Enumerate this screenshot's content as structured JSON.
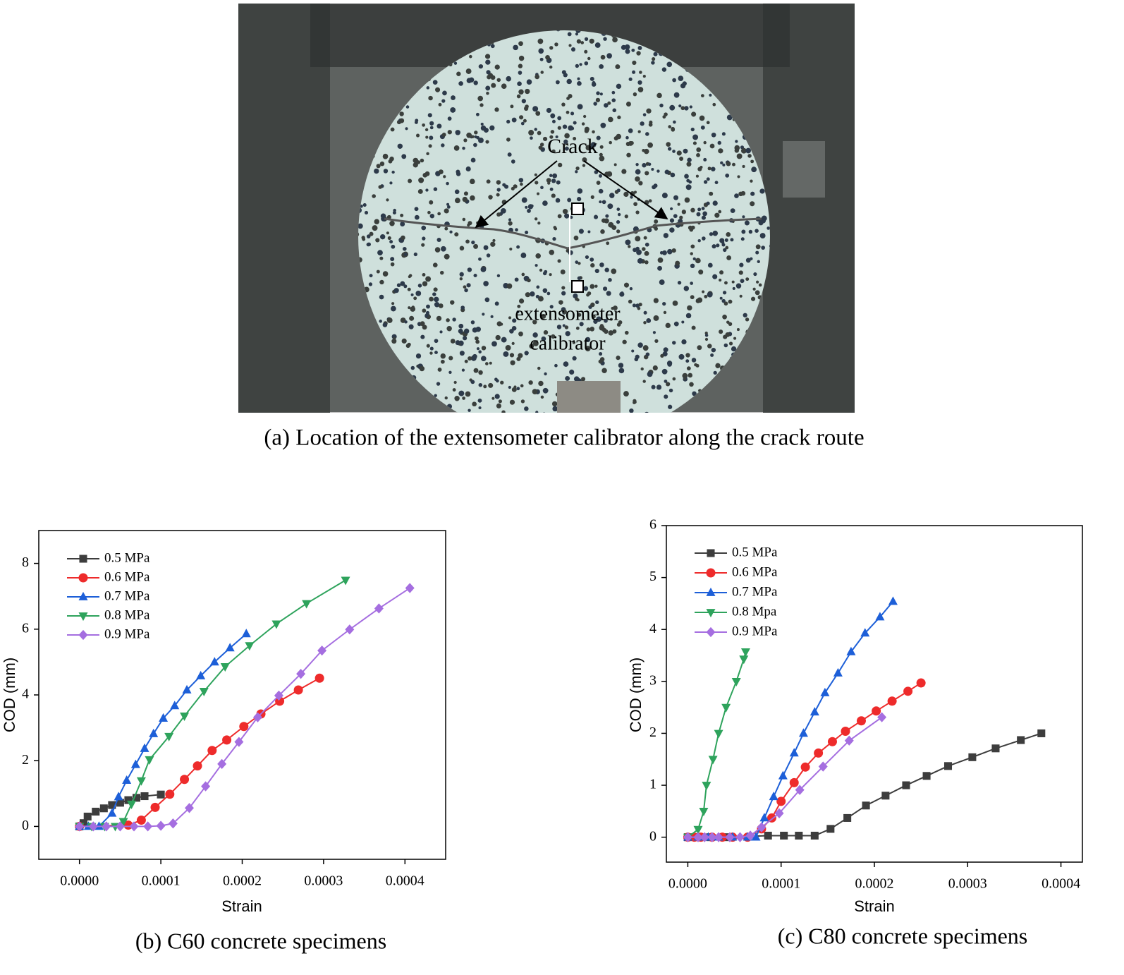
{
  "photo": {
    "crack_label": "Crack",
    "calibrator_label": [
      "extensometer",
      "calibrator"
    ],
    "caption": "(a) Location of the extensometer calibrator along the crack route"
  },
  "chart_data": [
    {
      "type": "line",
      "caption": "(b) C60 concrete specimens",
      "x_label": "Strain",
      "y_label": "COD (mm)",
      "xlim": [
        -5e-05,
        0.00045
      ],
      "ylim": [
        -1,
        9
      ],
      "xticks": [
        {
          "value": 0,
          "label": "0.0000"
        },
        {
          "value": 0.0001,
          "label": "0.0001"
        },
        {
          "value": 0.0002,
          "label": "0.0002"
        },
        {
          "value": 0.0003,
          "label": "0.0003"
        },
        {
          "value": 0.0004,
          "label": "0.0004"
        }
      ],
      "yticks": [
        0,
        2,
        4,
        6,
        8
      ],
      "legend": "upper left",
      "series": [
        {
          "name": "0.5 MPa",
          "color": "#3d3d3d",
          "marker": "square",
          "x": [
            0,
            5e-06,
            1e-05,
            2e-05,
            3e-05,
            4e-05,
            5e-05,
            6e-05,
            7e-05,
            8e-05,
            0.0001
          ],
          "values": [
            0,
            0.1,
            0.3,
            0.45,
            0.55,
            0.65,
            0.72,
            0.8,
            0.87,
            0.92,
            0.97
          ]
        },
        {
          "name": "0.6 MPa",
          "color": "#ee2b2b",
          "marker": "circle",
          "x": [
            0,
            6e-05,
            7.6e-05,
            9.3e-05,
            0.000111,
            0.000129,
            0.000145,
            0.000163,
            0.000181,
            0.000202,
            0.000223,
            0.000246,
            0.000269,
            0.000295
          ],
          "values": [
            0,
            0.04,
            0.19,
            0.58,
            0.98,
            1.43,
            1.84,
            2.31,
            2.63,
            3.04,
            3.42,
            3.81,
            4.15,
            4.51
          ]
        },
        {
          "name": "0.7 MPa",
          "color": "#1d5fd8",
          "marker": "triangle-up",
          "x": [
            0,
            1.1e-05,
            2.4e-05,
            4e-05,
            4.8e-05,
            5.8e-05,
            6.9e-05,
            8e-05,
            9.1e-05,
            0.000103,
            0.000117,
            0.000132,
            0.000149,
            0.000166,
            0.000185,
            0.000205
          ],
          "values": [
            0,
            0,
            0,
            0.4,
            0.9,
            1.4,
            1.88,
            2.37,
            2.82,
            3.29,
            3.67,
            4.15,
            4.58,
            5.0,
            5.43,
            5.86
          ]
        },
        {
          "name": "0.8 MPa",
          "color": "#2ea35c",
          "marker": "triangle-down",
          "x": [
            0,
            1.5e-05,
            3.1e-05,
            4.4e-05,
            5.4e-05,
            6.4e-05,
            7.6e-05,
            8.6e-05,
            0.00011,
            0.000129,
            0.000153,
            0.000179,
            0.000209,
            0.000242,
            0.000279,
            0.000327
          ],
          "values": [
            0,
            0,
            0,
            0,
            0.15,
            0.68,
            1.39,
            2.03,
            2.74,
            3.36,
            4.11,
            4.86,
            5.5,
            6.16,
            6.78,
            7.49
          ]
        },
        {
          "name": "0.9 MPa",
          "color": "#a56ee0",
          "marker": "diamond",
          "x": [
            0,
            1.7e-05,
            3.3e-05,
            5e-05,
            6.7e-05,
            8.4e-05,
            0.0001,
            0.000115,
            0.000135,
            0.000155,
            0.000175,
            0.000196,
            0.000219,
            0.000245,
            0.000272,
            0.000298,
            0.000332,
            0.000368,
            0.000406
          ],
          "values": [
            0,
            0,
            0,
            0,
            0,
            0,
            0.02,
            0.09,
            0.56,
            1.22,
            1.9,
            2.57,
            3.32,
            3.98,
            4.64,
            5.35,
            5.99,
            6.63,
            7.25
          ]
        }
      ]
    },
    {
      "type": "line",
      "caption": "(c) C80 concrete specimens",
      "x_label": "Strain",
      "y_label": "COD (mm)",
      "xlim": [
        -2.3e-05,
        0.000423
      ],
      "ylim": [
        -0.48,
        6
      ],
      "xticks": [
        {
          "value": 0,
          "label": "0.0000"
        },
        {
          "value": 0.0001,
          "label": "0.0001"
        },
        {
          "value": 0.0002,
          "label": "0.0002"
        },
        {
          "value": 0.0003,
          "label": "0.0003"
        },
        {
          "value": 0.0004,
          "label": "0.0004"
        }
      ],
      "yticks": [
        0,
        1,
        2,
        3,
        4,
        5,
        6
      ],
      "legend": "upper left",
      "series": [
        {
          "name": "0.5 MPa",
          "color": "#3d3d3d",
          "marker": "square",
          "x": [
            0,
            1.2e-05,
            2.4e-05,
            4.1e-05,
            8.6e-05,
            0.000103,
            0.000119,
            0.000136,
            0.000153,
            0.000171,
            0.000191,
            0.000212,
            0.000234,
            0.000256,
            0.000279,
            0.000305,
            0.00033,
            0.000357,
            0.000379
          ],
          "values": [
            0,
            0,
            0,
            0,
            0.03,
            0.03,
            0.03,
            0.03,
            0.16,
            0.37,
            0.61,
            0.8,
            1.0,
            1.18,
            1.37,
            1.54,
            1.71,
            1.87,
            2.0
          ]
        },
        {
          "name": "0.6 MPa",
          "color": "#ee2b2b",
          "marker": "circle",
          "x": [
            0,
            7e-06,
            1.4e-05,
            2.6e-05,
            3.7e-05,
            4.8e-05,
            6.4e-05,
            7.9e-05,
            9e-05,
            0.0001,
            0.000114,
            0.000126,
            0.00014,
            0.000155,
            0.000169,
            0.000186,
            0.000202,
            0.000219,
            0.000236,
            0.00025
          ],
          "values": [
            0,
            0,
            0,
            0,
            0,
            0,
            0,
            0.16,
            0.37,
            0.69,
            1.05,
            1.35,
            1.62,
            1.84,
            2.04,
            2.24,
            2.43,
            2.62,
            2.81,
            2.97
          ]
        },
        {
          "name": "0.7 MPa",
          "color": "#1d5fd8",
          "marker": "triangle-up",
          "x": [
            0,
            1.1e-05,
            2.2e-05,
            3.3e-05,
            4.8e-05,
            6.4e-05,
            7.3e-05,
            8.2e-05,
            9.2e-05,
            0.000102,
            0.000114,
            0.000124,
            0.000136,
            0.000147,
            0.000161,
            0.000175,
            0.00019,
            0.000206,
            0.00022
          ],
          "values": [
            0,
            0,
            0,
            0,
            0,
            0,
            0,
            0.37,
            0.78,
            1.18,
            1.62,
            2.0,
            2.41,
            2.78,
            3.16,
            3.57,
            3.93,
            4.24,
            4.54
          ]
        },
        {
          "name": "0.8 Mpa",
          "color": "#2ea35c",
          "marker": "triangle-down",
          "x": [
            0,
            1.1e-05,
            1.7e-05,
            2e-05,
            2.7e-05,
            3.3e-05,
            4.1e-05,
            5.2e-05,
            6e-05,
            6.2e-05
          ],
          "values": [
            0,
            0.15,
            0.5,
            1.0,
            1.5,
            2.0,
            2.5,
            3.0,
            3.43,
            3.57
          ]
        },
        {
          "name": "0.9 MPa",
          "color": "#a56ee0",
          "marker": "diamond",
          "x": [
            0,
            1.1e-05,
            1.8e-05,
            2.6e-05,
            3.3e-05,
            4.5e-05,
            5.6e-05,
            6.7e-05,
            7.9e-05,
            9.8e-05,
            0.00012,
            0.000145,
            0.000173,
            0.000208
          ],
          "values": [
            0,
            0,
            0,
            0,
            0,
            0,
            0,
            0.03,
            0.19,
            0.46,
            0.91,
            1.36,
            1.86,
            2.31
          ]
        }
      ]
    }
  ]
}
